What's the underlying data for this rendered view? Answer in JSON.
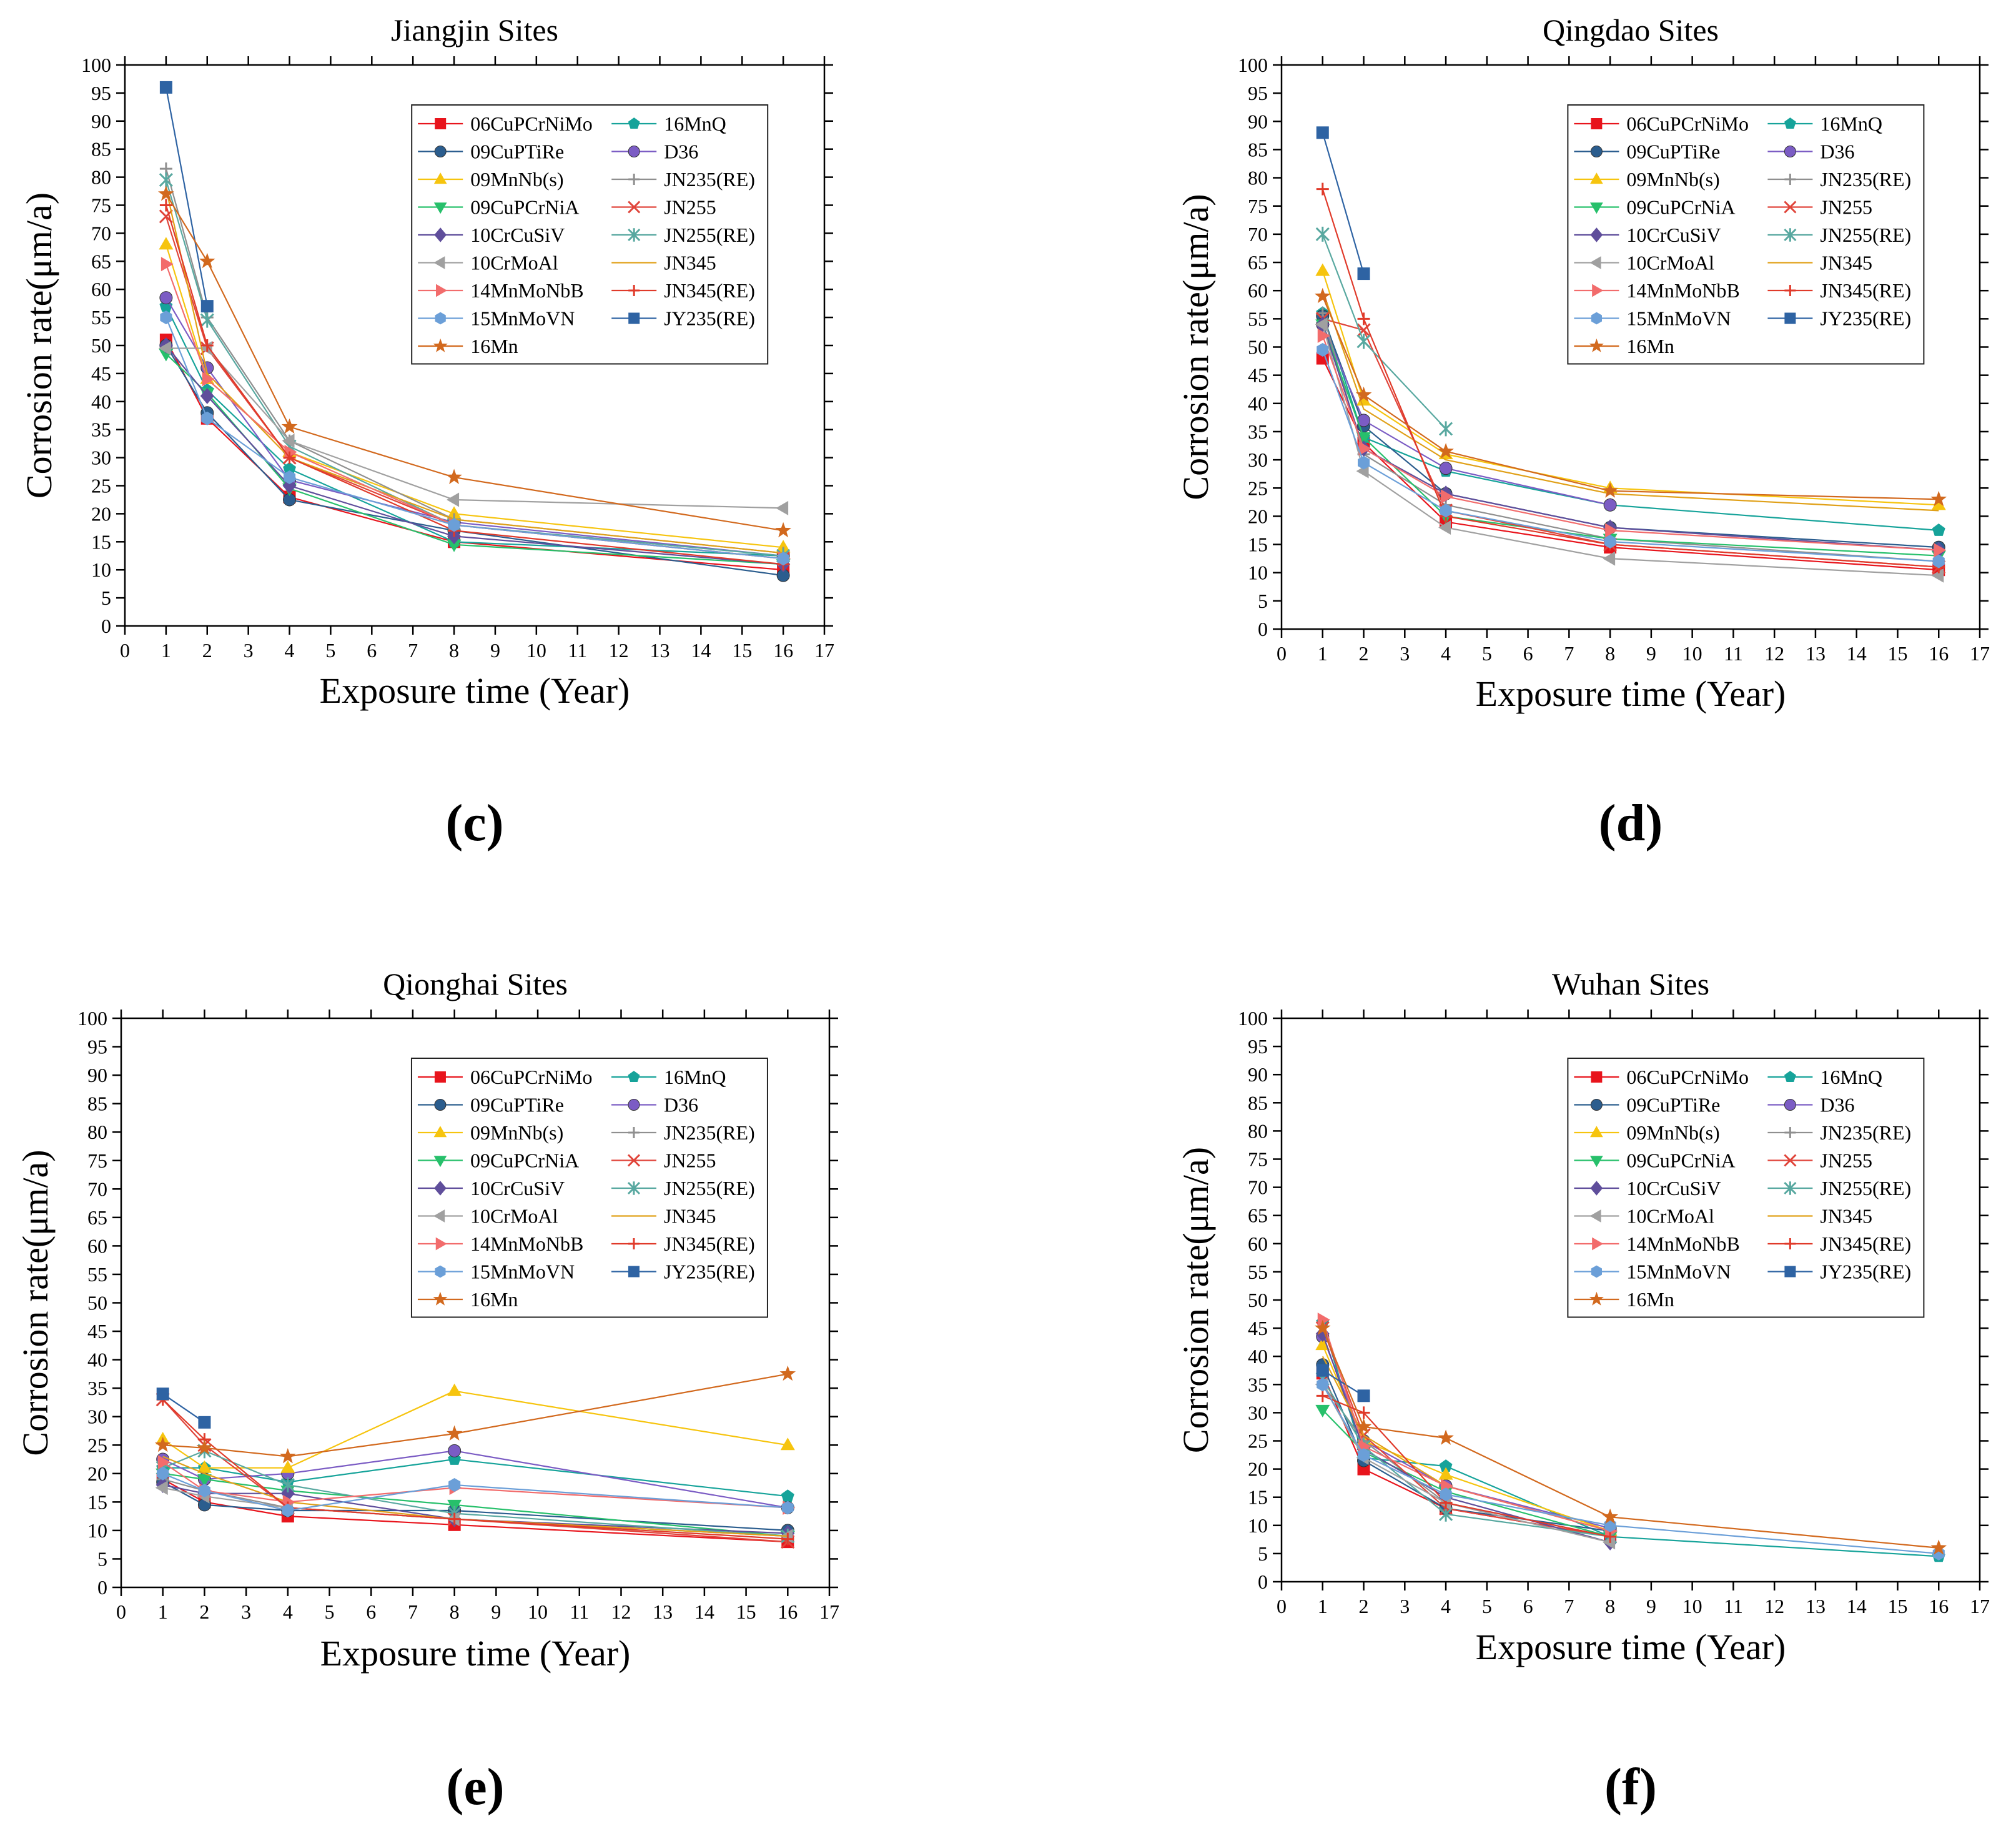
{
  "series_styles": [
    {
      "name": "06CuPCrNiMo",
      "color": "#e8141c",
      "marker": "square"
    },
    {
      "name": "16MnQ",
      "color": "#16a39a",
      "marker": "pentagon"
    },
    {
      "name": "09CuPTiRe",
      "color": "#2b5d8e",
      "marker": "circle"
    },
    {
      "name": "D36",
      "color": "#7b5cc4",
      "marker": "circle"
    },
    {
      "name": "09MnNb(s)",
      "color": "#f6c40e",
      "marker": "triangle-up"
    },
    {
      "name": "JN235(RE)",
      "color": "#8f8f8f",
      "marker": "plus"
    },
    {
      "name": "09CuPCrNiA",
      "color": "#27c06b",
      "marker": "triangle-down"
    },
    {
      "name": "JN255",
      "color": "#e0443a",
      "marker": "x"
    },
    {
      "name": "10CrCuSiV",
      "color": "#5f4e9b",
      "marker": "diamond"
    },
    {
      "name": "JN255(RE)",
      "color": "#58a8a0",
      "marker": "asterisk"
    },
    {
      "name": "10CrMoAl",
      "color": "#a0a0a0",
      "marker": "triangle-left"
    },
    {
      "name": "JN345",
      "color": "#e0a018",
      "marker": "line"
    },
    {
      "name": "14MnMoNbB",
      "color": "#f26c6c",
      "marker": "triangle-right"
    },
    {
      "name": "JN345(RE)",
      "color": "#e03a2a",
      "marker": "plus"
    },
    {
      "name": "15MnMoVN",
      "color": "#6b9fd8",
      "marker": "hexagon"
    },
    {
      "name": "JY235(RE)",
      "color": "#2e63a3",
      "marker": "square"
    },
    {
      "name": "16Mn",
      "color": "#d2691e",
      "marker": "star"
    }
  ],
  "legend_order": [
    "06CuPCrNiMo",
    "16MnQ",
    "09CuPTiRe",
    "D36",
    "09MnNb(s)",
    "JN235(RE)",
    "09CuPCrNiA",
    "JN255",
    "10CrCuSiV",
    "JN255(RE)",
    "10CrMoAl",
    "JN345",
    "14MnMoNbB",
    "JN345(RE)",
    "15MnMoVN",
    "JY235(RE)",
    "16Mn"
  ],
  "chart_data": [
    {
      "type": "line",
      "letter": "(c)",
      "title": "Jiangjin Sites",
      "xlabel": "Exposure time (Year)",
      "ylabel": "Corrosion rate(μm/a)",
      "xlim": [
        0,
        17
      ],
      "ylim": [
        0,
        100
      ],
      "xticks": [
        "0",
        "1",
        "2",
        "3",
        "4",
        "5",
        "6",
        "7",
        "8",
        "9",
        "10",
        "11",
        "12",
        "13",
        "14",
        "15",
        "16",
        "17"
      ],
      "yticks": [
        "0",
        "5",
        "10",
        "15",
        "20",
        "25",
        "30",
        "35",
        "40",
        "45",
        "50",
        "55",
        "60",
        "65",
        "70",
        "75",
        "80",
        "85",
        "90",
        "95",
        "100"
      ],
      "grid": false,
      "legend_position": "top-right",
      "x": [
        1,
        2,
        4,
        8,
        16
      ],
      "series": [
        {
          "name": "06CuPCrNiMo",
          "values": [
            51,
            37,
            23,
            15,
            10
          ]
        },
        {
          "name": "16MnQ",
          "values": [
            57,
            42,
            28,
            15,
            12.5
          ]
        },
        {
          "name": "09CuPTiRe",
          "values": [
            50,
            38,
            22.5,
            17,
            9
          ]
        },
        {
          "name": "D36",
          "values": [
            58.5,
            46,
            26,
            18.5,
            12.5
          ]
        },
        {
          "name": "09MnNb(s)",
          "values": [
            68,
            44,
            31,
            20,
            14
          ]
        },
        {
          "name": "JN235(RE)",
          "values": [
            81.5,
            55,
            33,
            19,
            13
          ]
        },
        {
          "name": "09CuPCrNiA",
          "values": [
            48.5,
            41.5,
            24.5,
            14.5,
            11
          ]
        },
        {
          "name": "JN255",
          "values": [
            73,
            49.5,
            30,
            18,
            12
          ]
        },
        {
          "name": "10CrCuSiV",
          "values": [
            50,
            41,
            25,
            16,
            11
          ]
        },
        {
          "name": "JN255(RE)",
          "values": [
            79.5,
            54.5,
            32,
            18,
            12.5
          ]
        },
        {
          "name": "10CrMoAl",
          "values": [
            49.5,
            49.5,
            33,
            22.5,
            21
          ]
        },
        {
          "name": "JN345",
          "values": [
            78,
            45,
            30,
            19,
            13
          ]
        },
        {
          "name": "14MnMoNbB",
          "values": [
            64.5,
            44,
            31,
            18,
            12
          ]
        },
        {
          "name": "JN345(RE)",
          "values": [
            75,
            50,
            30,
            17,
            11
          ]
        },
        {
          "name": "15MnMoVN",
          "values": [
            55,
            37,
            26.5,
            18,
            12
          ]
        },
        {
          "name": "JY235(RE)",
          "values": [
            96,
            57,
            null,
            null,
            null
          ]
        },
        {
          "name": "16Mn",
          "values": [
            77,
            65,
            35.5,
            26.5,
            17
          ]
        }
      ]
    },
    {
      "type": "line",
      "letter": "(d)",
      "title": "Qingdao Sites",
      "xlabel": "Exposure time (Year)",
      "ylabel": "Corrosion rate(μm/a)",
      "xlim": [
        0,
        17
      ],
      "ylim": [
        0,
        100
      ],
      "xticks": [
        "0",
        "1",
        "2",
        "3",
        "4",
        "5",
        "6",
        "7",
        "8",
        "9",
        "10",
        "11",
        "12",
        "13",
        "14",
        "15",
        "16",
        "17"
      ],
      "yticks": [
        "0",
        "5",
        "10",
        "15",
        "20",
        "25",
        "30",
        "35",
        "40",
        "45",
        "50",
        "55",
        "60",
        "65",
        "70",
        "75",
        "80",
        "85",
        "90",
        "95",
        "100"
      ],
      "grid": false,
      "legend_position": "top-right",
      "x": [
        1,
        2,
        4,
        8,
        16
      ],
      "series": [
        {
          "name": "06CuPCrNiMo",
          "values": [
            48,
            33,
            19,
            14.5,
            10.5
          ]
        },
        {
          "name": "16MnQ",
          "values": [
            56,
            34,
            28,
            22,
            17.5
          ]
        },
        {
          "name": "09CuPTiRe",
          "values": [
            55.5,
            36,
            24,
            18,
            14.5
          ]
        },
        {
          "name": "D36",
          "values": [
            54,
            37,
            28.5,
            22,
            null
          ]
        },
        {
          "name": "09MnNb(s)",
          "values": [
            63.5,
            40.5,
            31,
            25,
            22
          ]
        },
        {
          "name": "JN235(RE)",
          "values": [
            56,
            31,
            22,
            16,
            12
          ]
        },
        {
          "name": "09CuPCrNiA",
          "values": [
            54,
            34,
            20,
            16,
            13
          ]
        },
        {
          "name": "JN255",
          "values": [
            55,
            53,
            21,
            15,
            11
          ]
        },
        {
          "name": "10CrCuSiV",
          "values": [
            54,
            32,
            24,
            18,
            14
          ]
        },
        {
          "name": "JN255(RE)",
          "values": [
            70,
            51,
            35.5,
            null,
            null
          ]
        },
        {
          "name": "10CrMoAl",
          "values": [
            54,
            28,
            18,
            12.5,
            9.5
          ]
        },
        {
          "name": "JN345",
          "values": [
            60,
            39,
            30,
            24,
            21
          ]
        },
        {
          "name": "14MnMoNbB",
          "values": [
            52,
            32,
            23.5,
            17.5,
            14
          ]
        },
        {
          "name": "JN345(RE)",
          "values": [
            78,
            55,
            20,
            15,
            11
          ]
        },
        {
          "name": "15MnMoVN",
          "values": [
            49.5,
            29.5,
            21,
            15.5,
            12
          ]
        },
        {
          "name": "JY235(RE)",
          "values": [
            88,
            63,
            null,
            null,
            null
          ]
        },
        {
          "name": "16Mn",
          "values": [
            59,
            41.5,
            31.5,
            24.5,
            23
          ]
        }
      ]
    },
    {
      "type": "line",
      "letter": "(e)",
      "title": "Qionghai Sites",
      "xlabel": "Exposure time (Year)",
      "ylabel": "Corrosion rate(μm/a)",
      "xlim": [
        0,
        17
      ],
      "ylim": [
        0,
        100
      ],
      "xticks": [
        "0",
        "1",
        "2",
        "3",
        "4",
        "5",
        "6",
        "7",
        "8",
        "9",
        "10",
        "11",
        "12",
        "13",
        "14",
        "15",
        "16",
        "17"
      ],
      "yticks": [
        "0",
        "5",
        "10",
        "15",
        "20",
        "25",
        "30",
        "35",
        "40",
        "45",
        "50",
        "55",
        "60",
        "65",
        "70",
        "75",
        "80",
        "85",
        "90",
        "95",
        "100"
      ],
      "grid": false,
      "legend_position": "top-right",
      "x": [
        1,
        2,
        4,
        8,
        16
      ],
      "series": [
        {
          "name": "06CuPCrNiMo",
          "values": [
            19,
            15,
            12.5,
            11,
            8
          ]
        },
        {
          "name": "16MnQ",
          "values": [
            21,
            21,
            18.5,
            22.5,
            16
          ]
        },
        {
          "name": "09CuPTiRe",
          "values": [
            18.5,
            14.5,
            13.5,
            13.5,
            10
          ]
        },
        {
          "name": "D36",
          "values": [
            22.5,
            19,
            20,
            24,
            14
          ]
        },
        {
          "name": "09MnNb(s)",
          "values": [
            26,
            21,
            21,
            34.5,
            25
          ]
        },
        {
          "name": "JN235(RE)",
          "values": [
            19,
            17,
            14,
            12,
            9
          ]
        },
        {
          "name": "09CuPCrNiA",
          "values": [
            20,
            19,
            17,
            14.5,
            9
          ]
        },
        {
          "name": "JN255",
          "values": [
            33,
            25,
            14,
            12,
            8
          ]
        },
        {
          "name": "10CrCuSiV",
          "values": [
            18,
            16.5,
            16.5,
            12,
            9.5
          ]
        },
        {
          "name": "JN255(RE)",
          "values": [
            21,
            24,
            18,
            13,
            9
          ]
        },
        {
          "name": "10CrMoAl",
          "values": [
            17.5,
            16,
            14,
            12,
            9
          ]
        },
        {
          "name": "JN345",
          "values": [
            23,
            20,
            15,
            12,
            9
          ]
        },
        {
          "name": "14MnMoNbB",
          "values": [
            22,
            17,
            15,
            17.5,
            14
          ]
        },
        {
          "name": "JN345(RE)",
          "values": [
            33,
            26,
            14,
            12,
            8.5
          ]
        },
        {
          "name": "15MnMoVN",
          "values": [
            20,
            17,
            13.5,
            18,
            14
          ]
        },
        {
          "name": "JY235(RE)",
          "values": [
            34,
            29,
            null,
            null,
            null
          ]
        },
        {
          "name": "16Mn",
          "values": [
            25,
            24.5,
            23,
            27,
            37.5
          ]
        }
      ]
    },
    {
      "type": "line",
      "letter": "(f)",
      "title": "Wuhan Sites",
      "xlabel": "Exposure time (Year)",
      "ylabel": "Corrosion rate(μm/a)",
      "xlim": [
        0,
        17
      ],
      "ylim": [
        0,
        100
      ],
      "xticks": [
        "0",
        "1",
        "2",
        "3",
        "4",
        "5",
        "6",
        "7",
        "8",
        "9",
        "10",
        "11",
        "12",
        "13",
        "14",
        "15",
        "16",
        "17"
      ],
      "yticks": [
        "0",
        "5",
        "10",
        "15",
        "20",
        "25",
        "30",
        "35",
        "40",
        "45",
        "50",
        "55",
        "60",
        "65",
        "70",
        "75",
        "80",
        "85",
        "90",
        "95",
        "100"
      ],
      "grid": false,
      "legend_position": "top-right",
      "x": [
        1,
        2,
        4,
        8,
        16
      ],
      "series": [
        {
          "name": "06CuPCrNiMo",
          "values": [
            37,
            20,
            13,
            8,
            null
          ]
        },
        {
          "name": "16MnQ",
          "values": [
            46,
            22,
            20.5,
            8,
            4.5
          ]
        },
        {
          "name": "09CuPTiRe",
          "values": [
            38.5,
            21.5,
            13,
            9,
            null
          ]
        },
        {
          "name": "D36",
          "values": [
            43.5,
            25,
            17,
            9.5,
            null
          ]
        },
        {
          "name": "09MnNb(s)",
          "values": [
            42,
            25,
            19,
            9,
            null
          ]
        },
        {
          "name": "JN235(RE)",
          "values": [
            35,
            25,
            14,
            8,
            null
          ]
        },
        {
          "name": "09CuPCrNiA",
          "values": [
            30.5,
            23,
            16,
            8,
            null
          ]
        },
        {
          "name": "JN255",
          "values": [
            45,
            26,
            13,
            8,
            null
          ]
        },
        {
          "name": "10CrCuSiV",
          "values": [
            44,
            23.5,
            15,
            7,
            null
          ]
        },
        {
          "name": "JN255(RE)",
          "values": [
            36,
            24,
            12,
            8,
            null
          ]
        },
        {
          "name": "10CrMoAl",
          "values": [
            35,
            22,
            14,
            7,
            null
          ]
        },
        {
          "name": "JN345",
          "values": [
            40,
            26,
            17,
            9,
            null
          ]
        },
        {
          "name": "14MnMoNbB",
          "values": [
            46.5,
            24,
            17,
            9,
            null
          ]
        },
        {
          "name": "JN345(RE)",
          "values": [
            33,
            30,
            14,
            8,
            null
          ]
        },
        {
          "name": "15MnMoVN",
          "values": [
            35,
            22.5,
            15.5,
            10,
            5
          ]
        },
        {
          "name": "JY235(RE)",
          "values": [
            37.5,
            33,
            null,
            null,
            null
          ]
        },
        {
          "name": "16Mn",
          "values": [
            45,
            27.5,
            25.5,
            11.5,
            6
          ]
        }
      ]
    }
  ]
}
